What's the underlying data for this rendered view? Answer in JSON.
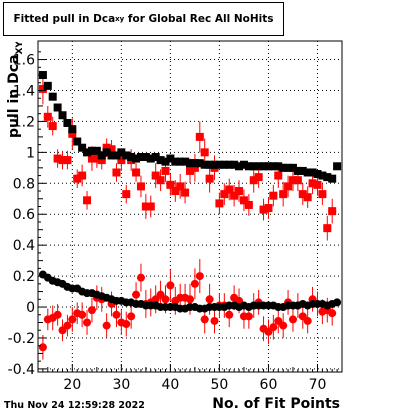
{
  "header": {
    "title_main": "Fitted pull in Dca",
    "title_sub": "xy",
    "title_tail": "for Global Rec All NoHits"
  },
  "axes": {
    "ylabel_main": "pull in Dca",
    "ylabel_sub": "XY",
    "xlabel": "No. of Fit Points"
  },
  "footer": {
    "timestamp": "Thu Nov 24 12:59:28 2022"
  },
  "colors": {
    "series_red": "#ff0000",
    "series_black": "#000000",
    "grid": "#000000"
  },
  "chart_data": {
    "type": "scatter",
    "xlim": [
      13,
      75
    ],
    "ylim": [
      -0.42,
      1.72
    ],
    "grid": true,
    "x_ticks": [
      20,
      30,
      40,
      50,
      60,
      70
    ],
    "y_ticks": [
      -0.4,
      -0.2,
      0,
      0.2,
      0.4,
      0.6,
      0.8,
      1,
      1.2,
      1.4,
      1.6
    ],
    "x_tick_labels": [
      "20",
      "30",
      "40",
      "50",
      "60",
      "70"
    ],
    "y_tick_labels": [
      "-0.4",
      "-0.2",
      "0",
      "0.2",
      "0.4",
      "0.6",
      "0.8",
      "1",
      "1.2",
      "1.4",
      "1.6"
    ],
    "series": [
      {
        "marker": "square",
        "color": "#ff0000",
        "x": [
          14,
          15,
          16,
          17,
          18,
          19,
          20,
          21,
          22,
          23,
          24,
          25,
          26,
          27,
          28,
          29,
          30,
          31,
          32,
          33,
          34,
          35,
          36,
          37,
          38,
          39,
          40,
          41,
          42,
          43,
          44,
          45,
          46,
          47,
          48,
          49,
          50,
          51,
          52,
          53,
          54,
          55,
          56,
          57,
          58,
          59,
          60,
          61,
          62,
          63,
          64,
          65,
          66,
          67,
          68,
          69,
          70,
          71,
          72,
          73
        ],
        "y": [
          1.41,
          1.23,
          1.17,
          0.96,
          0.95,
          0.95,
          1.12,
          0.83,
          0.85,
          0.69,
          0.96,
          0.96,
          0.95,
          1.03,
          1.02,
          0.87,
          0.95,
          0.73,
          0.95,
          0.87,
          0.78,
          0.65,
          0.65,
          0.85,
          0.82,
          0.88,
          0.79,
          0.75,
          0.78,
          0.74,
          0.88,
          0.9,
          1.1,
          1.0,
          0.83,
          0.9,
          0.67,
          0.73,
          0.76,
          0.72,
          0.75,
          0.69,
          0.66,
          0.82,
          0.84,
          0.63,
          0.64,
          0.72,
          0.85,
          0.73,
          0.78,
          0.82,
          0.82,
          0.73,
          0.71,
          0.8,
          0.79,
          0.73,
          0.51,
          0.62
        ],
        "yerr": [
          0.1,
          0.07,
          0.06,
          0.06,
          0.06,
          0.06,
          0.1,
          0.06,
          0.07,
          0.06,
          0.08,
          0.06,
          0.06,
          0.06,
          0.06,
          0.06,
          0.07,
          0.06,
          0.07,
          0.06,
          0.07,
          0.08,
          0.07,
          0.08,
          0.07,
          0.07,
          0.07,
          0.07,
          0.08,
          0.07,
          0.08,
          0.09,
          0.1,
          0.09,
          0.09,
          0.08,
          0.07,
          0.07,
          0.07,
          0.07,
          0.07,
          0.07,
          0.07,
          0.08,
          0.07,
          0.07,
          0.07,
          0.07,
          0.08,
          0.08,
          0.07,
          0.07,
          0.07,
          0.07,
          0.07,
          0.07,
          0.07,
          0.07,
          0.08,
          0.08
        ]
      },
      {
        "marker": "square",
        "color": "#000000",
        "x": [
          14,
          15,
          16,
          17,
          18,
          19,
          20,
          21,
          22,
          23,
          24,
          25,
          26,
          27,
          28,
          29,
          30,
          31,
          32,
          33,
          34,
          35,
          36,
          37,
          38,
          39,
          40,
          41,
          42,
          43,
          44,
          45,
          46,
          47,
          48,
          49,
          50,
          51,
          52,
          53,
          54,
          55,
          56,
          57,
          58,
          59,
          60,
          61,
          62,
          63,
          64,
          65,
          66,
          67,
          68,
          69,
          70,
          71,
          72,
          73,
          74
        ],
        "y": [
          1.5,
          1.43,
          1.36,
          1.29,
          1.24,
          1.19,
          1.15,
          1.07,
          1.03,
          1.0,
          1.01,
          1.01,
          0.98,
          1.0,
          0.98,
          0.98,
          1.0,
          0.98,
          0.97,
          0.96,
          0.97,
          0.97,
          0.96,
          0.97,
          0.95,
          0.94,
          0.96,
          0.94,
          0.94,
          0.94,
          0.93,
          0.93,
          0.93,
          0.92,
          0.92,
          0.92,
          0.92,
          0.92,
          0.92,
          0.92,
          0.91,
          0.92,
          0.91,
          0.91,
          0.91,
          0.91,
          0.91,
          0.91,
          0.91,
          0.9,
          0.9,
          0.9,
          0.88,
          0.88,
          0.87,
          0.87,
          0.86,
          0.85,
          0.84,
          0.83,
          0.91
        ]
      },
      {
        "marker": "circle",
        "color": "#ff0000",
        "x": [
          14,
          15,
          16,
          17,
          18,
          19,
          20,
          21,
          22,
          23,
          24,
          25,
          26,
          27,
          28,
          29,
          30,
          31,
          32,
          33,
          34,
          35,
          36,
          37,
          38,
          39,
          40,
          41,
          42,
          43,
          44,
          45,
          46,
          47,
          48,
          49,
          50,
          51,
          52,
          53,
          54,
          55,
          56,
          57,
          58,
          59,
          60,
          61,
          62,
          63,
          64,
          65,
          66,
          67,
          68,
          69,
          70,
          71,
          72,
          73
        ],
        "y": [
          -0.26,
          -0.08,
          -0.07,
          -0.05,
          -0.15,
          -0.12,
          -0.08,
          -0.04,
          -0.05,
          -0.1,
          -0.02,
          0.06,
          0.05,
          -0.12,
          0.02,
          -0.05,
          -0.1,
          -0.11,
          -0.06,
          0.08,
          0.19,
          0.02,
          0.03,
          0.05,
          0.08,
          0.05,
          0.14,
          0.04,
          0.06,
          0.06,
          0.05,
          0.15,
          0.2,
          -0.08,
          0.05,
          -0.09,
          0.01,
          0.01,
          -0.05,
          0.06,
          0.04,
          -0.06,
          -0.06,
          0.01,
          0.03,
          -0.14,
          -0.16,
          -0.13,
          -0.09,
          -0.12,
          0.03,
          -0.08,
          0.01,
          -0.06,
          -0.09,
          0.05,
          0.02,
          -0.03,
          -0.02,
          -0.04
        ],
        "yerr": [
          0.08,
          0.07,
          0.08,
          0.07,
          0.07,
          0.07,
          0.08,
          0.07,
          0.08,
          0.08,
          0.08,
          0.08,
          0.08,
          0.08,
          0.08,
          0.08,
          0.08,
          0.08,
          0.08,
          0.08,
          0.09,
          0.09,
          0.09,
          0.09,
          0.09,
          0.09,
          0.1,
          0.09,
          0.09,
          0.09,
          0.1,
          0.1,
          0.11,
          0.09,
          0.1,
          0.08,
          0.08,
          0.08,
          0.08,
          0.08,
          0.08,
          0.08,
          0.08,
          0.08,
          0.08,
          0.08,
          0.08,
          0.08,
          0.08,
          0.08,
          0.08,
          0.08,
          0.08,
          0.08,
          0.08,
          0.08,
          0.08,
          0.08,
          0.08,
          0.08
        ]
      },
      {
        "marker": "circle",
        "color": "#000000",
        "x": [
          14,
          15,
          16,
          17,
          18,
          19,
          20,
          21,
          22,
          23,
          24,
          25,
          26,
          27,
          28,
          29,
          30,
          31,
          32,
          33,
          34,
          35,
          36,
          37,
          38,
          39,
          40,
          41,
          42,
          43,
          44,
          45,
          46,
          47,
          48,
          49,
          50,
          51,
          52,
          53,
          54,
          55,
          56,
          57,
          58,
          59,
          60,
          61,
          62,
          63,
          64,
          65,
          66,
          67,
          68,
          69,
          70,
          71,
          72,
          73,
          74
        ],
        "y": [
          0.21,
          0.19,
          0.17,
          0.16,
          0.15,
          0.13,
          0.12,
          0.12,
          0.1,
          0.09,
          0.09,
          0.08,
          0.07,
          0.06,
          0.05,
          0.04,
          0.04,
          0.03,
          0.03,
          0.02,
          0.02,
          0.01,
          0.01,
          0.01,
          0.0,
          0.0,
          0.0,
          0.0,
          -0.01,
          -0.01,
          0.0,
          0.0,
          -0.01,
          -0.01,
          0.0,
          0.0,
          0.0,
          0.0,
          0.01,
          0.01,
          0.0,
          0.01,
          0.0,
          0.01,
          0.01,
          0.01,
          0.01,
          0.01,
          0.0,
          0.0,
          0.01,
          0.01,
          0.01,
          0.02,
          0.01,
          0.02,
          0.02,
          0.02,
          0.01,
          0.02,
          0.03
        ]
      }
    ]
  }
}
